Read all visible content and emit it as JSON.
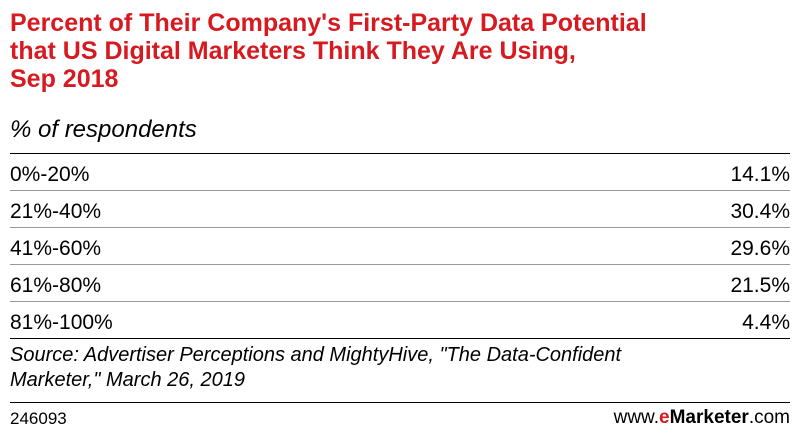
{
  "chart_data": {
    "type": "table",
    "title_lines": [
      "Percent of Their Company's First-Party Data Potential",
      "that US Digital Marketers Think They Are Using,",
      "Sep 2018"
    ],
    "subtitle": "% of respondents",
    "rows": [
      {
        "label": "0%-20%",
        "value": "14.1%"
      },
      {
        "label": "21%-40%",
        "value": "30.4%"
      },
      {
        "label": "41%-60%",
        "value": "29.6%"
      },
      {
        "label": "61%-80%",
        "value": "21.5%"
      },
      {
        "label": "81%-100%",
        "value": "4.4%"
      }
    ],
    "source_lines": [
      "Source: Advertiser Perceptions and MightyHive, \"The Data-Confident",
      "Marketer,\" March 26, 2019"
    ]
  },
  "footer": {
    "chart_id": "246093",
    "brand": {
      "prefix": "www.",
      "accent": "e",
      "strong": "Marketer",
      "suffix": ".com"
    }
  },
  "colors": {
    "title": "#d71920",
    "brand_accent": "#d71920",
    "text": "#000000",
    "row_rule": "#999999"
  }
}
